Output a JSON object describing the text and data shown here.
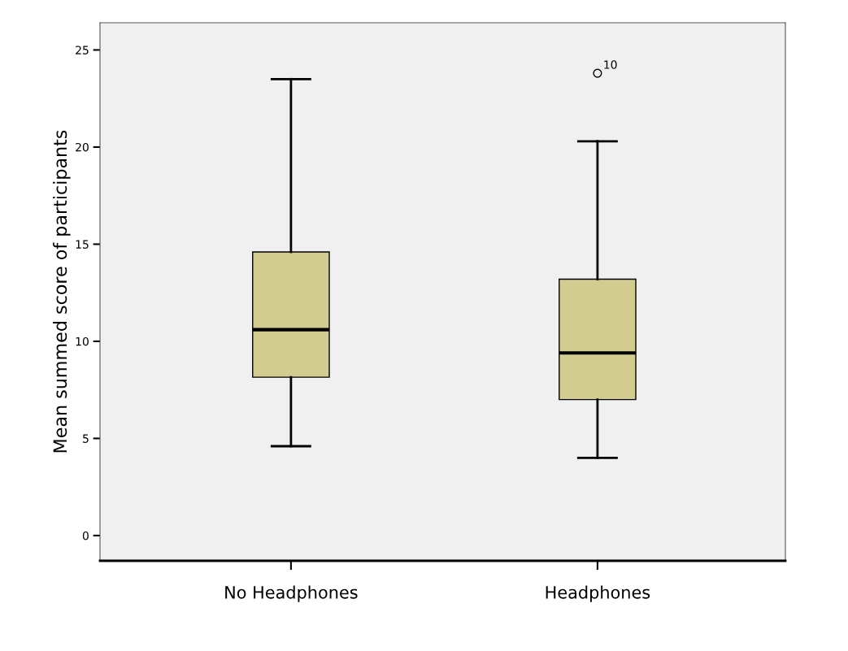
{
  "chart_data": {
    "type": "box",
    "ylabel": "Mean summed score of participants",
    "categories": [
      "No Headphones",
      "Headphones"
    ],
    "boxes": [
      {
        "low": 4.6,
        "q1": 8.15,
        "median": 10.6,
        "q3": 14.6,
        "high": 23.5
      },
      {
        "low": 4.0,
        "q1": 7.0,
        "median": 9.4,
        "q3": 13.2,
        "high": 20.3,
        "outliers": [
          23.8
        ]
      }
    ],
    "color": "#d2cc91",
    "ylim": [
      -1.3,
      26.4
    ],
    "yticks": [
      0,
      5,
      10,
      15,
      20,
      25
    ],
    "annotations": [
      "10"
    ],
    "grid": false,
    "legend": false
  }
}
